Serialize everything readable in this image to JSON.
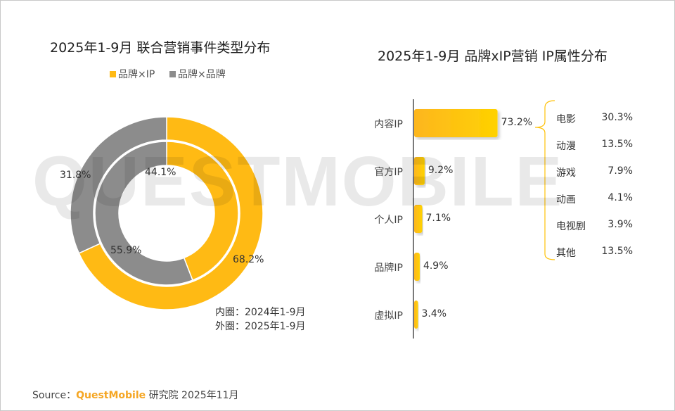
{
  "watermark": "QUESTMOBILE",
  "chart_data": [
    {
      "type": "pie",
      "title": "2025年1-9月 联合营销事件类型分布",
      "legend": [
        "品牌×IP",
        "品牌×品牌"
      ],
      "legend_position": "top",
      "colors": {
        "品牌×IP": "#FFBA14",
        "品牌×品牌": "#8C8C8C"
      },
      "rings": [
        {
          "name": "内圈",
          "period": "2024年1-9月",
          "values": [
            44.1,
            55.9
          ],
          "labels": [
            "44.1%",
            "55.9%"
          ]
        },
        {
          "name": "外圈",
          "period": "2025年1-9月",
          "values": [
            68.2,
            31.8
          ],
          "labels": [
            "68.2%",
            "31.8%"
          ]
        }
      ],
      "notes": [
        "内圈：2024年1-9月",
        "外圈：2025年1-9月"
      ]
    },
    {
      "type": "bar",
      "orientation": "horizontal",
      "title": "2025年1-9月 品牌xIP营销 IP属性分布",
      "categories": [
        "内容IP",
        "官方IP",
        "个人IP",
        "品牌IP",
        "虚拟IP"
      ],
      "values": [
        73.2,
        9.2,
        7.1,
        4.9,
        3.4
      ],
      "labels": [
        "73.2%",
        "9.2%",
        "7.1%",
        "4.9%",
        "3.4%"
      ],
      "bar_color": "#FFC107",
      "breakdown": {
        "of": "内容IP",
        "items": [
          {
            "name": "电影",
            "value": "30.3%"
          },
          {
            "name": "动漫",
            "value": "13.5%"
          },
          {
            "name": "游戏",
            "value": "7.9%"
          },
          {
            "name": "动画",
            "value": "4.1%"
          },
          {
            "name": "电视剧",
            "value": "3.9%"
          },
          {
            "name": "其他",
            "value": "13.5%"
          }
        ]
      }
    }
  ],
  "footer": {
    "source": "Source：",
    "brand": "QuestMobile",
    "suffix": "研究院 2025年11月",
    "brand_color": "#F5A623"
  }
}
